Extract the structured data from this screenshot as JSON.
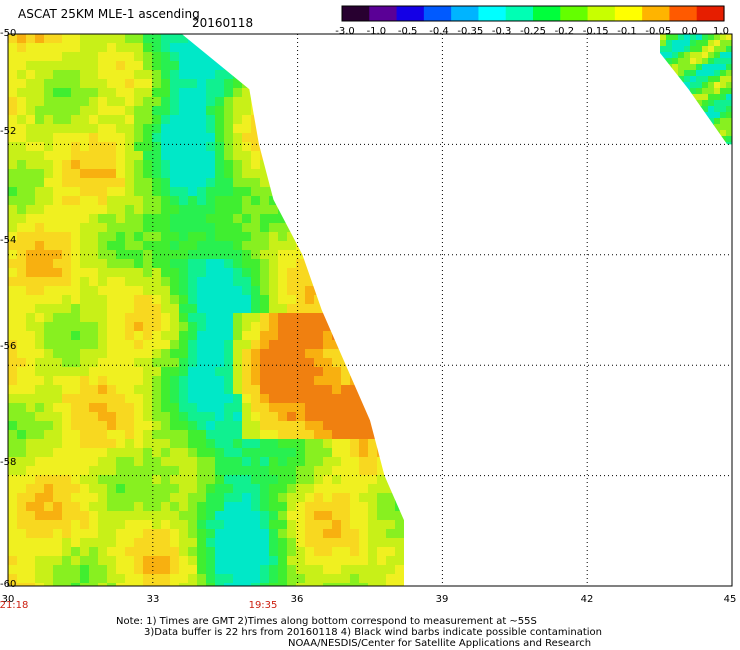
{
  "header": {
    "title": "ASCAT 25KM MLE-1 ascending",
    "date": "20160118"
  },
  "colorbar": {
    "labels": [
      "-3.0",
      "-1.0",
      "-0.5",
      "-0.4",
      "-0.35",
      "-0.3",
      "-0.25",
      "-0.2",
      "-0.15",
      "-0.1",
      "-0.05",
      "0.0",
      "1.0"
    ],
    "colors": [
      "#280030",
      "#5a0096",
      "#1400e6",
      "#005aff",
      "#00b4ff",
      "#00ffff",
      "#00ffb4",
      "#00ff3c",
      "#64ff00",
      "#c8ff00",
      "#ffff00",
      "#ffb400",
      "#ff5a00",
      "#e61e00"
    ]
  },
  "axes": {
    "lat_labels": [
      "-50",
      "-52",
      "-54",
      "-56",
      "-58",
      "-60"
    ],
    "lon_labels": [
      "30",
      "33",
      "36",
      "39",
      "42",
      "45"
    ],
    "lat_range": [
      -60,
      -50
    ],
    "lon_range": [
      30,
      45
    ],
    "grid": "dotted"
  },
  "times": [
    "21:18",
    "19:35"
  ],
  "notes": [
    "Note: 1) Times are GMT 2)Times along bottom correspond to measurement at ~55S",
    "3)Data buffer is 22 hrs from 20160118 4) Black wind barbs indicate possible contamination",
    "NOAA/NESDIS/Center for Satellite Applications and Research"
  ],
  "swath": {
    "east_edge_lon": [
      [
        -50,
        33.6
      ],
      [
        -51,
        35.0
      ],
      [
        -52,
        35.2
      ],
      [
        -53,
        35.5
      ],
      [
        -54,
        36.1
      ],
      [
        -55,
        36.5
      ],
      [
        -56,
        37.0
      ],
      [
        -57,
        37.5
      ],
      [
        -58,
        37.8
      ],
      [
        -59,
        38.3
      ],
      [
        -60,
        38.7
      ]
    ],
    "ne_patch_edges": [
      [
        -50,
        43.2,
        45.0
      ],
      [
        -51,
        44.1,
        45.0
      ],
      [
        -52,
        44.9,
        45.0
      ]
    ]
  },
  "colors": {
    "time_label": "#cc1e0e",
    "grid": "#000000"
  }
}
